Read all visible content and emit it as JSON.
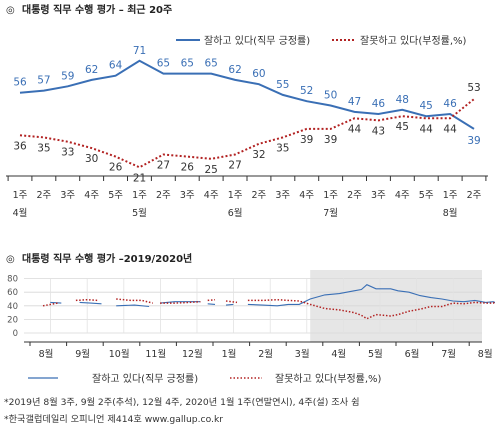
{
  "chart_data": [
    {
      "type": "line",
      "title": "대통령 직무 수행 평가 – 최근 20주",
      "title_marker": "◎",
      "x": [
        "1주 4월",
        "2주",
        "3주",
        "4주",
        "5주",
        "1주 5월",
        "2주",
        "3주",
        "4주",
        "1주 6월",
        "2주",
        "3주",
        "4주",
        "1주 7월",
        "2주",
        "3주",
        "4주",
        "5주",
        "1주 8월",
        "2주"
      ],
      "tick_top": [
        "1주",
        "2주",
        "3주",
        "4주",
        "5주",
        "1주",
        "2주",
        "3주",
        "4주",
        "1주",
        "2주",
        "3주",
        "4주",
        "1주",
        "2주",
        "3주",
        "4주",
        "5주",
        "1주",
        "2주"
      ],
      "tick_bottom": [
        "4월",
        "",
        "",
        "",
        "",
        "5월",
        "",
        "",
        "",
        "6월",
        "",
        "",
        "",
        "7월",
        "",
        "",
        "",
        "",
        "8월",
        ""
      ],
      "series": [
        {
          "name": "잘하고 있다(직무 긍정률)",
          "color": "#3a6fb5",
          "style": "solid",
          "values": [
            56,
            57,
            59,
            62,
            64,
            71,
            65,
            65,
            65,
            62,
            60,
            55,
            52,
            50,
            47,
            46,
            48,
            45,
            46,
            39
          ]
        },
        {
          "name": "잘못하고 있다(부정률,%)",
          "color": "#b22222",
          "style": "dotted",
          "values": [
            36,
            35,
            33,
            30,
            26,
            21,
            27,
            26,
            25,
            27,
            32,
            35,
            39,
            39,
            44,
            43,
            45,
            44,
            44,
            53
          ]
        }
      ],
      "legend_position": "top-right"
    },
    {
      "type": "line",
      "title": "대통령 직무 수행 평가 –2019/2020년",
      "title_marker": "◎",
      "yticks": [
        "80",
        "60",
        "40",
        "20",
        "0"
      ],
      "ylim": [
        0,
        80
      ],
      "months": [
        "8월",
        "9월",
        "10월",
        "11월",
        "12월",
        "1월",
        "2월",
        "3월",
        "4월",
        "5월",
        "6월",
        "7월",
        "8월"
      ],
      "series": [
        {
          "name": "잘하고 있다(직무 긍정률)",
          "color": "#3a6fb5",
          "style": "solid",
          "segments": [
            [
              [
                0.5,
                45
              ],
              [
                0.8,
                44
              ]
            ],
            [
              [
                1.3,
                45
              ],
              [
                1.6,
                44
              ],
              [
                1.9,
                43
              ]
            ],
            [
              [
                2.3,
                40
              ],
              [
                2.8,
                41
              ],
              [
                3.2,
                39
              ]
            ],
            [
              [
                3.5,
                44
              ],
              [
                3.9,
                46
              ],
              [
                4.3,
                46
              ],
              [
                4.6,
                46
              ]
            ],
            [
              [
                4.8,
                43
              ],
              [
                5.0,
                42
              ]
            ],
            [
              [
                5.3,
                41
              ],
              [
                5.5,
                42
              ]
            ],
            [
              [
                5.9,
                42
              ],
              [
                6.3,
                41
              ],
              [
                6.7,
                40
              ],
              [
                7.0,
                42
              ],
              [
                7.3,
                42
              ],
              [
                7.6,
                50
              ],
              [
                8.0,
                56
              ],
              [
                8.4,
                58
              ],
              [
                8.8,
                62
              ],
              [
                9.0,
                64
              ],
              [
                9.15,
                71
              ],
              [
                9.4,
                65
              ],
              [
                9.6,
                65
              ],
              [
                9.8,
                65
              ],
              [
                10.0,
                62
              ],
              [
                10.3,
                60
              ],
              [
                10.6,
                55
              ],
              [
                10.9,
                52
              ],
              [
                11.2,
                50
              ],
              [
                11.5,
                47
              ],
              [
                11.8,
                46
              ],
              [
                12.1,
                48
              ],
              [
                12.4,
                45
              ],
              [
                12.6,
                46
              ],
              [
                12.9,
                39
              ]
            ]
          ]
        },
        {
          "name": "잘못하고 있다(부정률,%)",
          "color": "#b22222",
          "style": "dotted",
          "segments": [
            [
              [
                0.3,
                40
              ],
              [
                0.7,
                44
              ]
            ],
            [
              [
                1.2,
                48
              ],
              [
                1.5,
                49
              ],
              [
                1.8,
                48
              ]
            ],
            [
              [
                2.3,
                50
              ],
              [
                2.7,
                48
              ],
              [
                3.0,
                48
              ],
              [
                3.3,
                44
              ]
            ],
            [
              [
                3.5,
                44
              ],
              [
                3.9,
                44
              ],
              [
                4.3,
                45
              ],
              [
                4.6,
                46
              ]
            ],
            [
              [
                4.8,
                48
              ],
              [
                5.0,
                49
              ]
            ],
            [
              [
                5.3,
                47
              ],
              [
                5.6,
                45
              ]
            ],
            [
              [
                5.9,
                48
              ],
              [
                6.3,
                48
              ],
              [
                6.7,
                49
              ],
              [
                7.0,
                48
              ],
              [
                7.3,
                47
              ],
              [
                7.6,
                42
              ],
              [
                8.0,
                36
              ],
              [
                8.4,
                34
              ],
              [
                8.8,
                30
              ],
              [
                9.0,
                26
              ],
              [
                9.15,
                21
              ],
              [
                9.4,
                27
              ],
              [
                9.6,
                26
              ],
              [
                9.8,
                25
              ],
              [
                10.0,
                27
              ],
              [
                10.3,
                32
              ],
              [
                10.6,
                35
              ],
              [
                10.9,
                39
              ],
              [
                11.2,
                39
              ],
              [
                11.5,
                44
              ],
              [
                11.8,
                43
              ],
              [
                12.1,
                45
              ],
              [
                12.4,
                44
              ],
              [
                12.6,
                44
              ],
              [
                12.9,
                53
              ]
            ]
          ]
        }
      ],
      "highlight_range": [
        7.6,
        13.1
      ],
      "highlight_color": "#e6e6e6"
    }
  ],
  "legend": {
    "positive": "잘하고 있다(직무 긍정률)",
    "negative": "잘못하고 있다(부정률,%)"
  },
  "footnotes": {
    "line1": "*2019년 8월 3주, 9월 2주(추석), 12월 4주, 2020년 1월 1주(연말연시), 4주(설) 조사 쉼",
    "line2": "*한국갤럽데일리 오피니언 제414호 www.gallup.co.kr"
  }
}
